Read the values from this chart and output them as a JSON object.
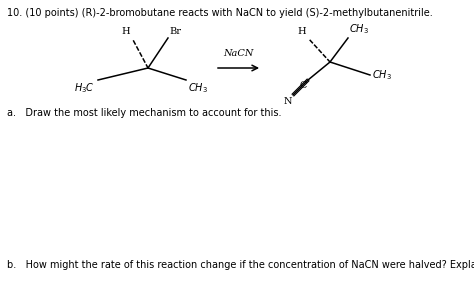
{
  "bg_color": "#ffffff",
  "title_text": "10. (10 points) (R)-2-bromobutane reacts with NaCN to yield (S)-2-methylbutanenitrile.",
  "question_a": "a.   Draw the most likely mechanism to account for this.",
  "question_b": "b.   How might the rate of this reaction change if the concentration of NaCN were halved? Explain.",
  "figsize": [
    4.74,
    2.91
  ],
  "dpi": 100
}
